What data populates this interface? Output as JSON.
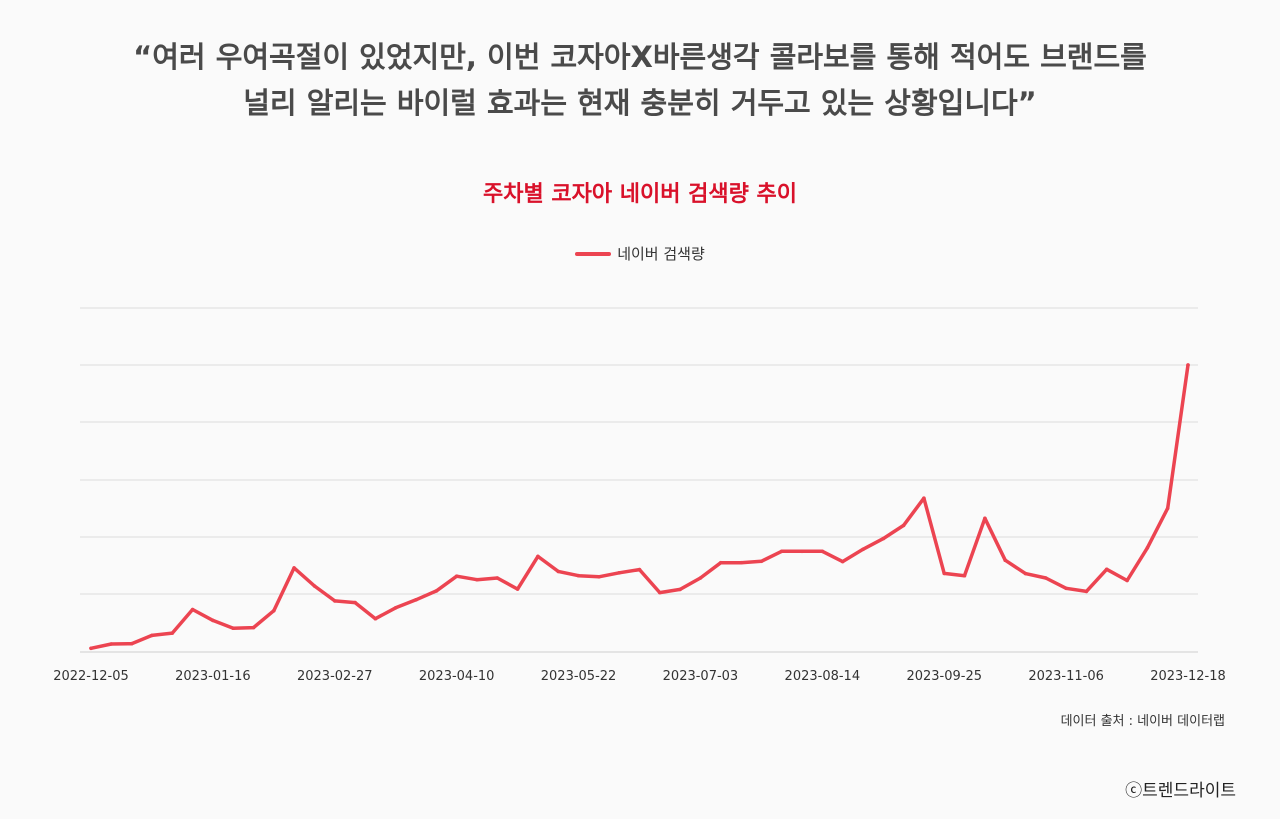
{
  "header": {
    "quote_line1": "“여러 우여곡절이 있었지만, 이번 코자아X바른생각 콜라보를 통해 적어도 브랜드를",
    "quote_line2": "널리 알리는 바이럴 효과는 현재 충분히 거두고 있는 상황입니다”"
  },
  "footer": {
    "source": "데이터 출처 : 네이버 데이터랩",
    "credit": "ⓒ트렌드라이트"
  },
  "colors": {
    "line": "#ec4451",
    "title": "#d9112a",
    "grid": "#dcdcdc"
  },
  "chart_data": {
    "type": "line",
    "title": "주차별 코자아 네이버 검색량 추이",
    "xlabel": "",
    "ylabel": "",
    "ylim": [
      0,
      100
    ],
    "grid": true,
    "legend_position": "top-center",
    "x_tick_labels": [
      "2022-12-05",
      "2023-01-16",
      "2023-02-27",
      "2023-04-10",
      "2023-05-22",
      "2023-07-03",
      "2023-08-14",
      "2023-09-25",
      "2023-11-06",
      "2023-12-18"
    ],
    "series": [
      {
        "name": "네이버 검색량",
        "x": [
          "2022-12-05",
          "2022-12-12",
          "2022-12-19",
          "2022-12-26",
          "2023-01-02",
          "2023-01-09",
          "2023-01-16",
          "2023-01-23",
          "2023-01-30",
          "2023-02-06",
          "2023-02-13",
          "2023-02-20",
          "2023-02-27",
          "2023-03-06",
          "2023-03-13",
          "2023-03-20",
          "2023-03-27",
          "2023-04-03",
          "2023-04-10",
          "2023-04-17",
          "2023-04-24",
          "2023-05-01",
          "2023-05-08",
          "2023-05-15",
          "2023-05-22",
          "2023-05-29",
          "2023-06-05",
          "2023-06-12",
          "2023-06-19",
          "2023-06-26",
          "2023-07-03",
          "2023-07-10",
          "2023-07-17",
          "2023-07-24",
          "2023-07-31",
          "2023-08-07",
          "2023-08-14",
          "2023-08-21",
          "2023-08-28",
          "2023-09-04",
          "2023-09-11",
          "2023-09-18",
          "2023-09-25",
          "2023-10-02",
          "2023-10-09",
          "2023-10-16",
          "2023-10-23",
          "2023-10-30",
          "2023-11-06",
          "2023-11-13",
          "2023-11-20",
          "2023-11-27",
          "2023-12-04",
          "2023-12-11",
          "2023-12-18"
        ],
        "values": [
          1.3,
          2.8,
          2.9,
          5.8,
          6.6,
          14.8,
          11.0,
          8.3,
          8.5,
          14.4,
          29.3,
          23.0,
          17.8,
          17.2,
          11.6,
          15.4,
          18.2,
          21.3,
          26.4,
          25.2,
          25.8,
          21.9,
          33.3,
          28.1,
          26.6,
          26.2,
          27.6,
          28.7,
          20.7,
          21.8,
          25.8,
          31.1,
          31.1,
          31.6,
          35.1,
          35.1,
          35.1,
          31.5,
          35.8,
          39.5,
          44.1,
          53.6,
          27.4,
          26.6,
          46.6,
          32.0,
          27.3,
          25.8,
          22.2,
          21.1,
          28.8,
          24.9,
          36.3,
          50.1,
          100
        ]
      }
    ]
  }
}
